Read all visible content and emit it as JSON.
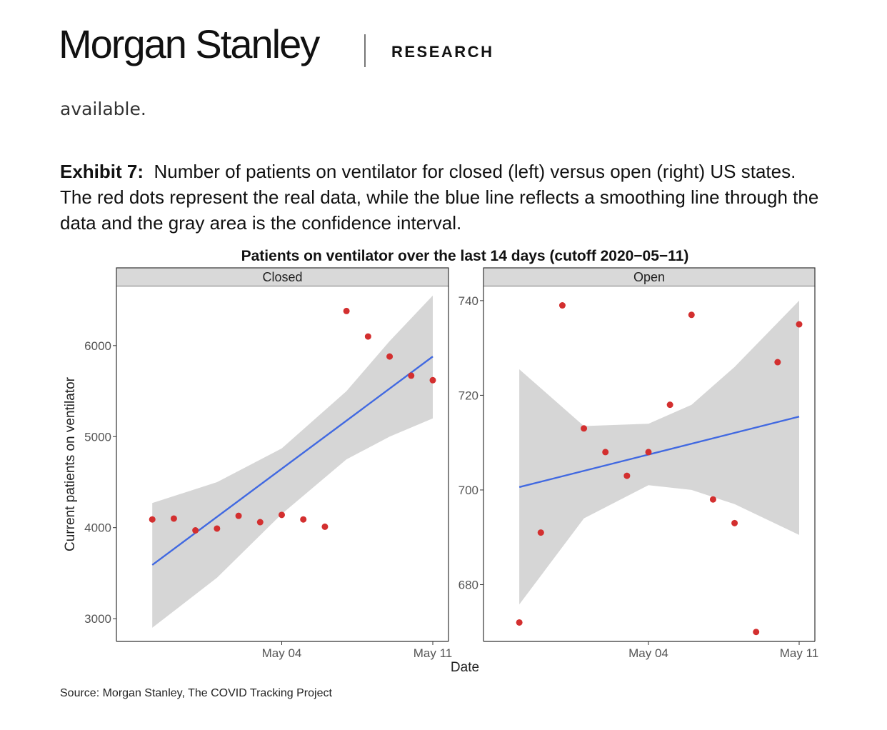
{
  "header": {
    "logo": "Morgan Stanley",
    "section": "RESEARCH"
  },
  "prev_text": "available.",
  "caption": {
    "label": "Exhibit 7:",
    "text": "Number of patients on ventilator for closed (left) versus open (right) US states. The red dots represent the real data, while the blue line reflects a smoothing line through the data and the gray area is the confidence interval."
  },
  "source": "Source: Morgan Stanley, The COVID Tracking Project",
  "colors": {
    "points": "#d32f2f",
    "line": "#4169e1",
    "band": "#d6d6d6",
    "strip": "#d9d9d9"
  },
  "chart_data": {
    "type": "scatter",
    "title": "Patients on ventilator over the last 14 days (cutoff 2020−05−11)",
    "xlabel": "Date",
    "ylabel": "Current patients on ventilator",
    "grid": false,
    "facets": [
      {
        "strip": "Closed",
        "x_ticks": [
          {
            "date": "2020-05-04",
            "label": "May 04"
          },
          {
            "date": "2020-05-11",
            "label": "May 11"
          }
        ],
        "y_ticks": [
          {
            "value": 3000,
            "label": "3000"
          },
          {
            "value": 4000,
            "label": "4000"
          },
          {
            "value": 5000,
            "label": "5000"
          },
          {
            "value": 6000,
            "label": "6000"
          }
        ],
        "xlim": [
          "2020-04-27",
          "2020-05-11"
        ],
        "ylim": [
          2750,
          6650
        ],
        "points": [
          {
            "x": "2020-04-28",
            "y": 4090
          },
          {
            "x": "2020-04-29",
            "y": 4100
          },
          {
            "x": "2020-04-30",
            "y": 3970
          },
          {
            "x": "2020-05-01",
            "y": 3990
          },
          {
            "x": "2020-05-02",
            "y": 4130
          },
          {
            "x": "2020-05-03",
            "y": 4060
          },
          {
            "x": "2020-05-04",
            "y": 4140
          },
          {
            "x": "2020-05-05",
            "y": 4090
          },
          {
            "x": "2020-05-06",
            "y": 4010
          },
          {
            "x": "2020-05-07",
            "y": 6380
          },
          {
            "x": "2020-05-08",
            "y": 6100
          },
          {
            "x": "2020-05-09",
            "y": 5880
          },
          {
            "x": "2020-05-10",
            "y": 5670
          },
          {
            "x": "2020-05-11",
            "y": 5620
          }
        ],
        "fit": {
          "start": {
            "x": "2020-04-28",
            "y": 3590
          },
          "end": {
            "x": "2020-05-11",
            "y": 5880
          }
        },
        "band": [
          {
            "x": "2020-04-28",
            "lo": 2900,
            "hi": 4270
          },
          {
            "x": "2020-05-01",
            "lo": 3450,
            "hi": 4500
          },
          {
            "x": "2020-05-04",
            "lo": 4150,
            "hi": 4870
          },
          {
            "x": "2020-05-07",
            "lo": 4750,
            "hi": 5500
          },
          {
            "x": "2020-05-09",
            "lo": 5000,
            "hi": 6050
          },
          {
            "x": "2020-05-11",
            "lo": 5200,
            "hi": 6550
          }
        ]
      },
      {
        "strip": "Open",
        "x_ticks": [
          {
            "date": "2020-05-04",
            "label": "May 04"
          },
          {
            "date": "2020-05-11",
            "label": "May 11"
          }
        ],
        "y_ticks": [
          {
            "value": 680,
            "label": "680"
          },
          {
            "value": 700,
            "label": "700"
          },
          {
            "value": 720,
            "label": "720"
          },
          {
            "value": 740,
            "label": "740"
          }
        ],
        "xlim": [
          "2020-04-27",
          "2020-05-11"
        ],
        "ylim": [
          668,
          743
        ],
        "points": [
          {
            "x": "2020-04-28",
            "y": 672
          },
          {
            "x": "2020-04-29",
            "y": 691
          },
          {
            "x": "2020-04-30",
            "y": 739
          },
          {
            "x": "2020-05-01",
            "y": 713
          },
          {
            "x": "2020-05-02",
            "y": 708
          },
          {
            "x": "2020-05-03",
            "y": 703
          },
          {
            "x": "2020-05-04",
            "y": 708
          },
          {
            "x": "2020-05-05",
            "y": 718
          },
          {
            "x": "2020-05-06",
            "y": 737
          },
          {
            "x": "2020-05-07",
            "y": 698
          },
          {
            "x": "2020-05-08",
            "y": 693
          },
          {
            "x": "2020-05-09",
            "y": 670
          },
          {
            "x": "2020-05-10",
            "y": 727
          },
          {
            "x": "2020-05-11",
            "y": 735
          }
        ],
        "fit": {
          "start": {
            "x": "2020-04-28",
            "y": 700.6
          },
          "end": {
            "x": "2020-05-11",
            "y": 715.5
          }
        },
        "band": [
          {
            "x": "2020-04-28",
            "lo": 675.8,
            "hi": 725.5
          },
          {
            "x": "2020-05-01",
            "lo": 694.0,
            "hi": 713.5
          },
          {
            "x": "2020-05-04",
            "lo": 701.0,
            "hi": 714.0
          },
          {
            "x": "2020-05-06",
            "lo": 700.0,
            "hi": 718.0
          },
          {
            "x": "2020-05-08",
            "lo": 697.0,
            "hi": 726.0
          },
          {
            "x": "2020-05-11",
            "lo": 690.5,
            "hi": 740.0
          }
        ]
      }
    ]
  }
}
